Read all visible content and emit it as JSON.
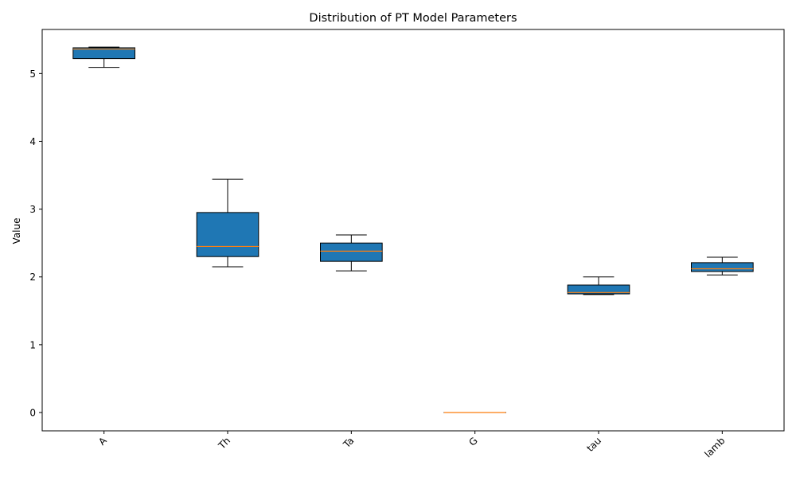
{
  "chart_data": {
    "type": "box",
    "title": "Distribution of PT Model Parameters",
    "xlabel": "",
    "ylabel": "Value",
    "ylim": [
      -0.27,
      5.65
    ],
    "yticks": [
      0,
      1,
      2,
      3,
      4,
      5
    ],
    "grid": false,
    "categories": [
      "A",
      "Th",
      "Ta",
      "G",
      "tau",
      "lamb"
    ],
    "boxes": [
      {
        "label": "A",
        "whisker_low": 5.09,
        "q1": 5.22,
        "median": 5.36,
        "q3": 5.38,
        "whisker_high": 5.39
      },
      {
        "label": "Th",
        "whisker_low": 2.15,
        "q1": 2.3,
        "median": 2.45,
        "q3": 2.95,
        "whisker_high": 3.44
      },
      {
        "label": "Ta",
        "whisker_low": 2.09,
        "q1": 2.23,
        "median": 2.38,
        "q3": 2.5,
        "whisker_high": 2.62
      },
      {
        "label": "G",
        "whisker_low": 0.0,
        "q1": 0.0,
        "median": 0.0,
        "q3": 0.0,
        "whisker_high": 0.0
      },
      {
        "label": "tau",
        "whisker_low": 1.74,
        "q1": 1.75,
        "median": 1.77,
        "q3": 1.88,
        "whisker_high": 2.0
      },
      {
        "label": "lamb",
        "whisker_low": 2.03,
        "q1": 2.08,
        "median": 2.12,
        "q3": 2.21,
        "whisker_high": 2.29
      }
    ],
    "colors": {
      "box_fill": "#1f77b4",
      "median": "#ff7f0e",
      "edge": "#000000"
    }
  }
}
